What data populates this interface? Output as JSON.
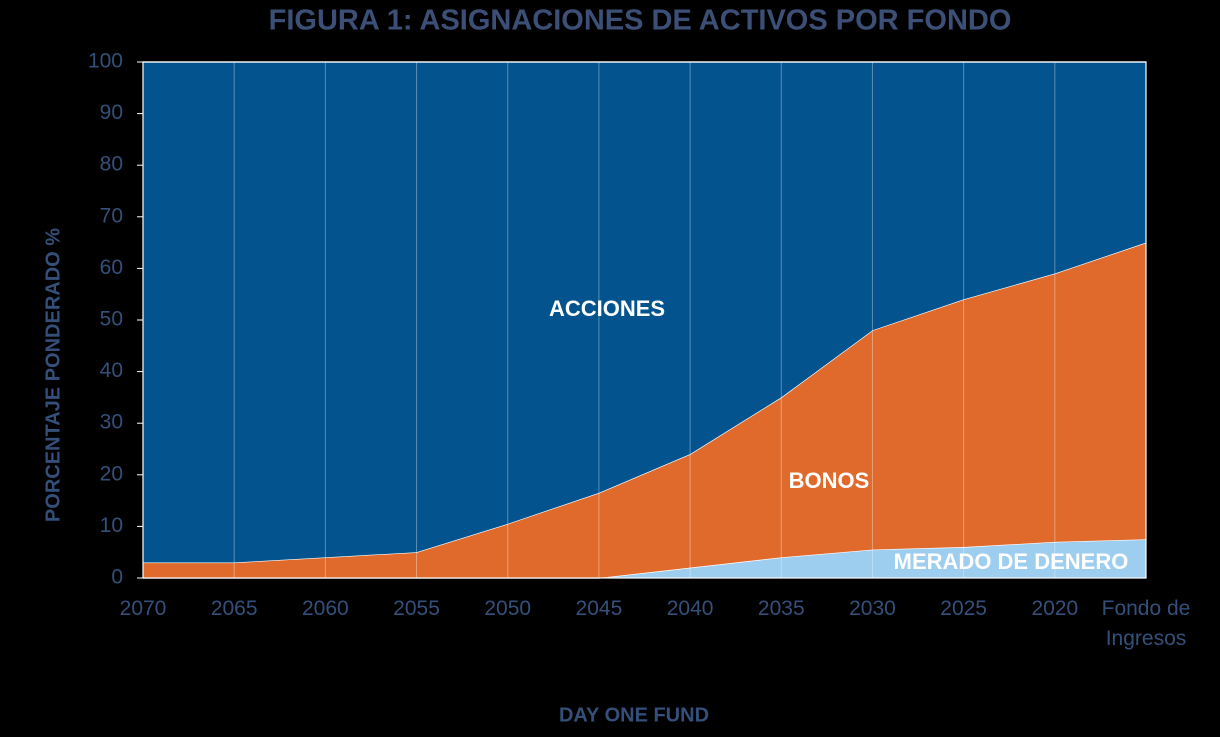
{
  "chart_data": {
    "type": "stacked_area",
    "title": "FIGURA 1: ASIGNACIONES DE ACTIVOS POR FONDO",
    "xlabel": "DAY ONE FUND",
    "ylabel": "PORCENTAJE PONDERADO %",
    "categories": [
      "2070",
      "2065",
      "2060",
      "2055",
      "2050",
      "2045",
      "2040",
      "2035",
      "2030",
      "2025",
      "2020",
      "Fondo de Ingresos"
    ],
    "series": [
      {
        "name": "MERADO DE DENERO",
        "color": "#9dcdef",
        "values": [
          0,
          0,
          0,
          0,
          0,
          0,
          2,
          4,
          5.5,
          6,
          7,
          7.5
        ]
      },
      {
        "name": "BONOS",
        "color": "#e06a2c",
        "values": [
          3,
          3,
          4,
          5,
          10.5,
          16.5,
          22,
          31,
          42.5,
          48,
          52,
          57.5
        ]
      },
      {
        "name": "ACCIONES",
        "color": "#02538e",
        "values": [
          97,
          97,
          96,
          95,
          89.5,
          83.5,
          76,
          65,
          52,
          46,
          41,
          35
        ]
      }
    ],
    "ylim": [
      0,
      100
    ],
    "yticks": [
      0,
      10,
      20,
      30,
      40,
      50,
      60,
      70,
      80,
      90,
      100
    ],
    "grid": true
  }
}
